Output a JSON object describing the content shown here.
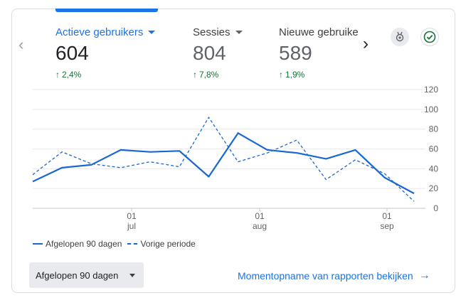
{
  "metrics": [
    {
      "label": "Actieve gebruikers",
      "value": "604",
      "change": "2,4%",
      "active": true
    },
    {
      "label": "Sessies",
      "value": "804",
      "change": "7,8%",
      "active": false
    },
    {
      "label": "Nieuwe gebruike",
      "value": "589",
      "change": "1,9%",
      "active": false
    }
  ],
  "chart_data": {
    "type": "line",
    "x_tick_labels": [
      {
        "day": "01",
        "month": "jul"
      },
      {
        "day": "01",
        "month": "aug"
      },
      {
        "day": "01",
        "month": "sep"
      }
    ],
    "y_ticks": [
      "120",
      "100",
      "80",
      "60",
      "40",
      "20",
      "0"
    ],
    "ylim": [
      0,
      120
    ],
    "grid": true,
    "series": [
      {
        "name": "Afgelopen 90 dagen",
        "style": "solid",
        "color": "#1967d2",
        "values": [
          27,
          41,
          44,
          59,
          57,
          58,
          32,
          76,
          59,
          56,
          50,
          59,
          31,
          15
        ]
      },
      {
        "name": "Vorige periode",
        "style": "dashed",
        "color": "#1967d2",
        "values": [
          34,
          57,
          45,
          41,
          47,
          42,
          92,
          47,
          56,
          69,
          29,
          49,
          35,
          7
        ]
      }
    ]
  },
  "legend": {
    "current": "Afgelopen 90 dagen",
    "previous": "Vorige periode"
  },
  "range_select": {
    "label": "Afgelopen 90 dagen"
  },
  "snapshot_link": {
    "label": "Momentopname van rapporten bekijken"
  },
  "icons": {
    "prev": "chevron-left-icon",
    "next": "chevron-right-icon",
    "insights": "insights-icon",
    "check": "check-circle-icon",
    "link": "arrow-right-icon"
  }
}
